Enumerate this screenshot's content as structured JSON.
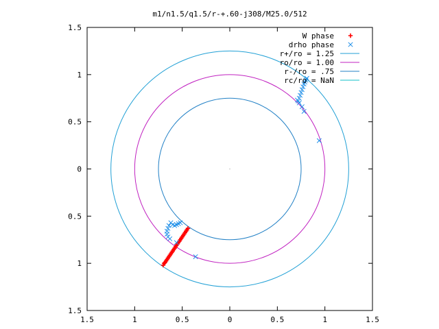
{
  "chart_data": {
    "type": "scatter",
    "title": "m1/n1.5/q1.5/r-+.60-j308/M25.0/512",
    "xlabel": "",
    "ylabel": "",
    "xlim": [
      -1.5,
      1.5
    ],
    "ylim": [
      -1.5,
      1.5
    ],
    "grid": false,
    "legend_position": "top-right",
    "x_ticks": [
      {
        "value": -1.5,
        "label": "1.5"
      },
      {
        "value": -1.0,
        "label": "1"
      },
      {
        "value": -0.5,
        "label": "0.5"
      },
      {
        "value": 0.0,
        "label": "0"
      },
      {
        "value": 0.5,
        "label": "0.5"
      },
      {
        "value": 1.0,
        "label": "1"
      },
      {
        "value": 1.5,
        "label": "1.5"
      }
    ],
    "y_ticks": [
      {
        "value": -1.5,
        "label": "1.5"
      },
      {
        "value": -1.0,
        "label": "1"
      },
      {
        "value": -0.5,
        "label": "0.5"
      },
      {
        "value": 0.0,
        "label": "0"
      },
      {
        "value": 0.5,
        "label": "0.5"
      },
      {
        "value": 1.0,
        "label": "1"
      },
      {
        "value": 1.5,
        "label": "1.5"
      }
    ],
    "series": [
      {
        "name": "W phase",
        "marker": "+",
        "color": "#ff0000",
        "points": [
          [
            -0.7,
            -1.02
          ],
          [
            -0.68,
            -0.99
          ],
          [
            -0.66,
            -0.96
          ],
          [
            -0.64,
            -0.93
          ],
          [
            -0.62,
            -0.9
          ],
          [
            -0.6,
            -0.87
          ],
          [
            -0.58,
            -0.84
          ],
          [
            -0.56,
            -0.81
          ],
          [
            -0.54,
            -0.78
          ],
          [
            -0.52,
            -0.75
          ],
          [
            -0.5,
            -0.72
          ],
          [
            -0.48,
            -0.69
          ],
          [
            -0.46,
            -0.66
          ],
          [
            -0.44,
            -0.63
          ],
          [
            -0.69,
            -1.0
          ],
          [
            -0.67,
            -0.975
          ],
          [
            -0.65,
            -0.945
          ],
          [
            -0.63,
            -0.915
          ],
          [
            -0.61,
            -0.885
          ],
          [
            -0.59,
            -0.855
          ],
          [
            -0.57,
            -0.825
          ],
          [
            -0.55,
            -0.795
          ],
          [
            -0.53,
            -0.765
          ],
          [
            -0.51,
            -0.735
          ],
          [
            -0.49,
            -0.705
          ],
          [
            -0.47,
            -0.675
          ],
          [
            -0.45,
            -0.645
          ]
        ]
      },
      {
        "name": "drho phase",
        "marker": "x",
        "color": "#1f8fe8",
        "points": [
          [
            0.72,
            0.72
          ],
          [
            0.73,
            0.75
          ],
          [
            0.74,
            0.78
          ],
          [
            0.75,
            0.81
          ],
          [
            0.76,
            0.84
          ],
          [
            0.77,
            0.87
          ],
          [
            0.78,
            0.9
          ],
          [
            0.79,
            0.92
          ],
          [
            0.8,
            0.94
          ],
          [
            0.81,
            0.96
          ],
          [
            0.71,
            0.73
          ],
          [
            0.73,
            0.7
          ],
          [
            0.76,
            0.66
          ],
          [
            0.78,
            0.61
          ],
          [
            0.94,
            0.3
          ],
          [
            -0.62,
            -0.57
          ],
          [
            -0.6,
            -0.59
          ],
          [
            -0.58,
            -0.6
          ],
          [
            -0.56,
            -0.59
          ],
          [
            -0.54,
            -0.58
          ],
          [
            -0.52,
            -0.57
          ],
          [
            -0.64,
            -0.6
          ],
          [
            -0.65,
            -0.63
          ],
          [
            -0.66,
            -0.66
          ],
          [
            -0.66,
            -0.69
          ],
          [
            -0.65,
            -0.72
          ],
          [
            -0.63,
            -0.74
          ],
          [
            -0.56,
            -0.78
          ],
          [
            -0.36,
            -0.93
          ]
        ]
      },
      {
        "name": "r+/ro = 1.25",
        "kind": "circle",
        "radius": 1.25,
        "color": "#1f9fd5"
      },
      {
        "name": "ro/ro = 1.00",
        "kind": "circle",
        "radius": 1.0,
        "color": "#c020c0"
      },
      {
        "name": "r-/ro = .75",
        "kind": "circle",
        "radius": 0.75,
        "color": "#1f7fc5"
      },
      {
        "name": "rc/ro = NaN",
        "kind": "circle",
        "radius": null,
        "color": "#10c0c8"
      }
    ]
  }
}
